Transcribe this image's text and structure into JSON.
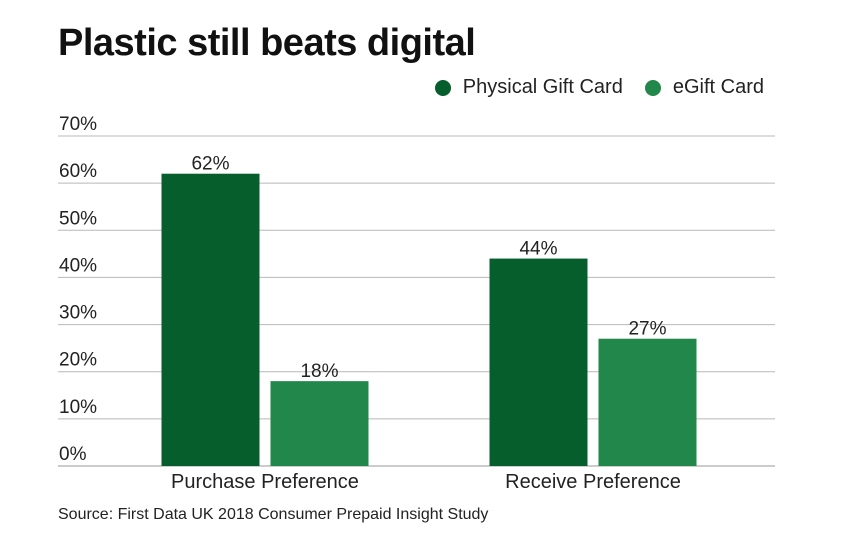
{
  "title": "Plastic still beats digital",
  "source": "Source: First Data UK 2018 Consumer Prepaid Insight Study",
  "legend": [
    {
      "name": "Physical Gift Card",
      "color": "#055e2b"
    },
    {
      "name": "eGift Card",
      "color": "#22874a"
    }
  ],
  "chart_data": {
    "type": "bar",
    "title": "Plastic still beats digital",
    "categories": [
      "Purchase Preference",
      "Receive Preference"
    ],
    "series": [
      {
        "name": "Physical Gift Card",
        "values": [
          62,
          44
        ],
        "labels": [
          "62%",
          "44%"
        ],
        "color": "#055e2b"
      },
      {
        "name": "eGift Card",
        "values": [
          18,
          27
        ],
        "labels": [
          "18%",
          "27%"
        ],
        "color": "#22874a"
      }
    ],
    "yticks": [
      0,
      10,
      20,
      30,
      40,
      50,
      60,
      70
    ],
    "ytick_labels": [
      "0%",
      "10%",
      "20%",
      "30%",
      "40%",
      "50%",
      "60%",
      "70%"
    ],
    "ylim": [
      0,
      70
    ],
    "xlabel": "",
    "ylabel": "",
    "grid": true,
    "legend_position": "top-right"
  }
}
